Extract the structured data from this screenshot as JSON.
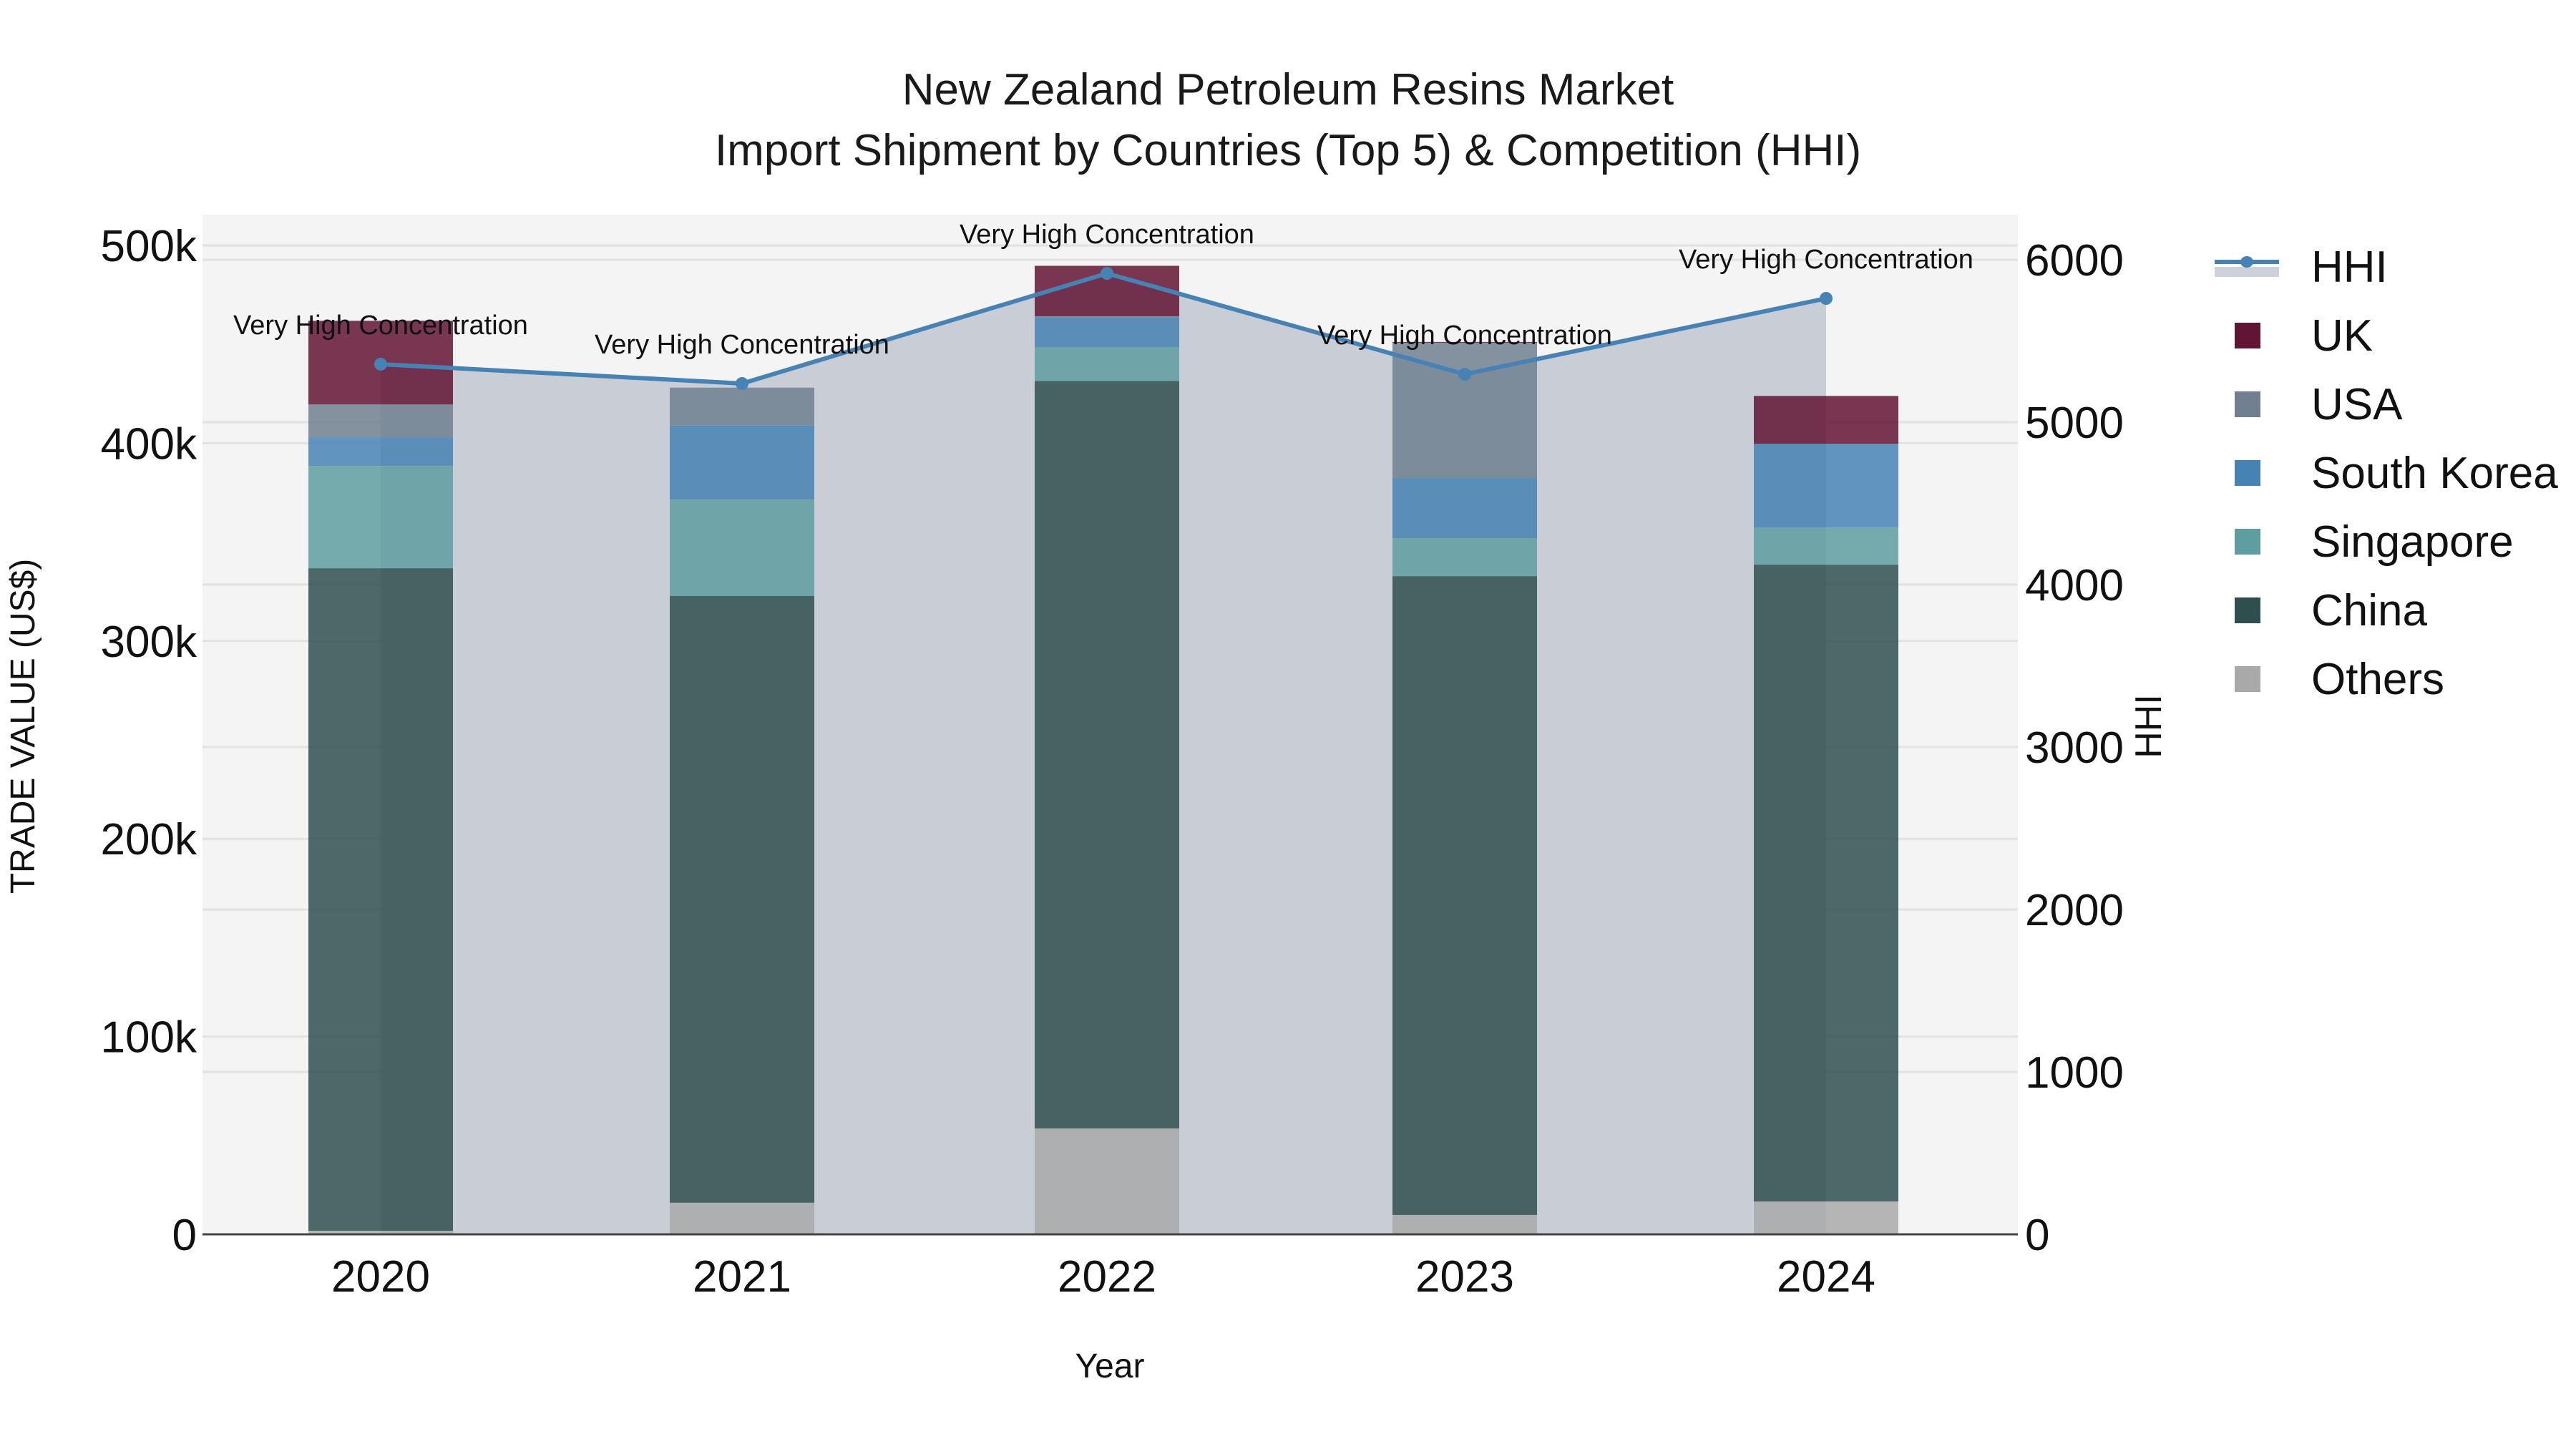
{
  "title": {
    "line1": "New Zealand Petroleum Resins Market",
    "line2": "Import Shipment by Countries (Top 5) & Competition (HHI)"
  },
  "axes": {
    "x_label": "Year",
    "y_left_label": "TRADE VALUE (US$)",
    "y_right_label": "HHI",
    "y_left_ticks": [
      "0",
      "100k",
      "200k",
      "300k",
      "400k",
      "500k"
    ],
    "y_right_ticks": [
      "0",
      "1000",
      "2000",
      "3000",
      "4000",
      "5000",
      "6000"
    ]
  },
  "legend": [
    {
      "name": "HHI",
      "type": "line",
      "color": "#4682b4"
    },
    {
      "name": "UK",
      "type": "bar",
      "color": "#611434"
    },
    {
      "name": "USA",
      "type": "bar",
      "color": "#708090"
    },
    {
      "name": "South Korea",
      "type": "bar",
      "color": "#4682b4"
    },
    {
      "name": "Singapore",
      "type": "bar",
      "color": "#5f9ea0"
    },
    {
      "name": "China",
      "type": "bar",
      "color": "#2f4f4f"
    },
    {
      "name": "Others",
      "type": "bar",
      "color": "#a9a9a9"
    }
  ],
  "annotation_text": "Very High Concentration",
  "chart_data": {
    "type": "bar",
    "title": "New Zealand Petroleum Resins Market — Import Shipment by Countries (Top 5) & Competition (HHI)",
    "xlabel": "Year",
    "ylabel": "TRADE VALUE (US$)",
    "y2label": "HHI",
    "categories": [
      "2020",
      "2021",
      "2022",
      "2023",
      "2024"
    ],
    "stacked": true,
    "ylim": [
      0,
      515000
    ],
    "y2lim": [
      0,
      6270
    ],
    "grid": true,
    "legend_position": "right",
    "series": [
      {
        "name": "Others",
        "color": "#a9a9a9",
        "values": [
          1800,
          16000,
          53500,
          9800,
          16600
        ]
      },
      {
        "name": "China",
        "color": "#2f4f4f",
        "values": [
          335000,
          306800,
          378000,
          323000,
          322000
        ]
      },
      {
        "name": "Singapore",
        "color": "#5f9ea0",
        "values": [
          51700,
          48800,
          17000,
          19200,
          18800
        ]
      },
      {
        "name": "South Korea",
        "color": "#4682b4",
        "values": [
          14500,
          37300,
          15200,
          30400,
          42300
        ]
      },
      {
        "name": "USA",
        "color": "#708090",
        "values": [
          16600,
          19200,
          500,
          68400,
          0
        ]
      },
      {
        "name": "UK",
        "color": "#611434",
        "values": [
          42300,
          0,
          25500,
          400,
          24200
        ]
      }
    ],
    "line_series": {
      "name": "HHI",
      "axis": "right",
      "color": "#4682b4",
      "fill": "tozeroy",
      "values": [
        5357,
        5238,
        5916,
        5295,
        5762
      ],
      "annotations": [
        "Very High Concentration",
        "Very High Concentration",
        "Very High Concentration",
        "Very High Concentration",
        "Very High Concentration"
      ]
    }
  }
}
